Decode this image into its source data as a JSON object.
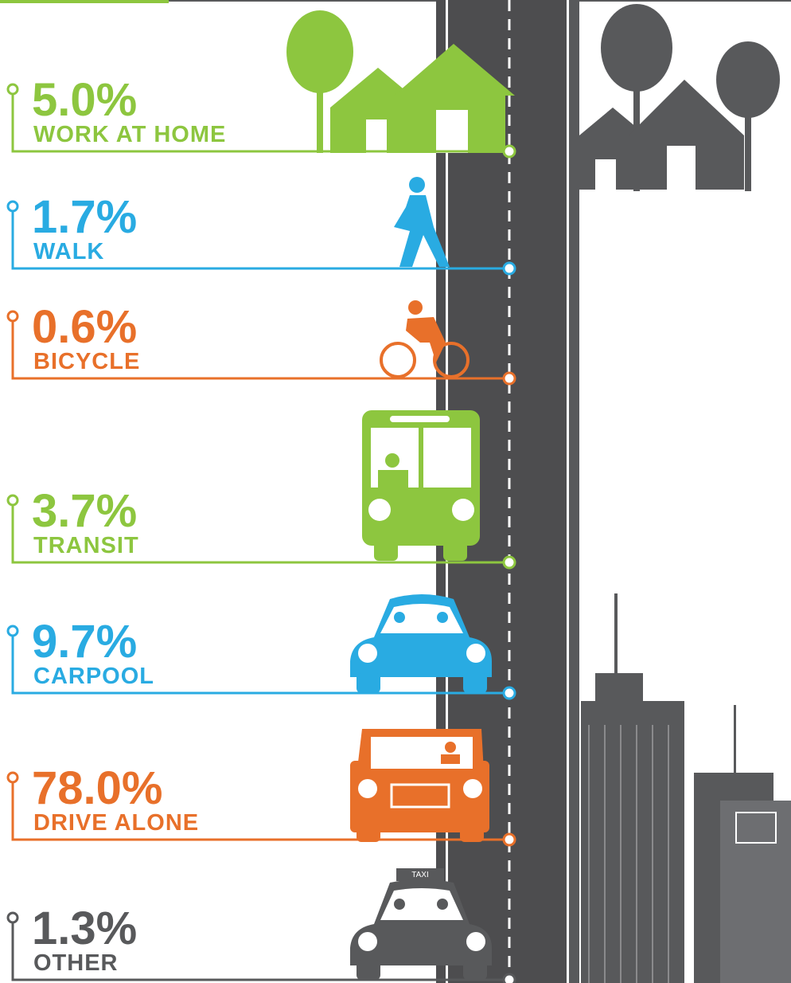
{
  "items": [
    {
      "value": "5.0%",
      "label": "WORK AT HOME",
      "color": "#8dc63f"
    },
    {
      "value": "1.7%",
      "label": "WALK",
      "color": "#29abe2"
    },
    {
      "value": "0.6%",
      "label": "BICYCLE",
      "color": "#e8702a"
    },
    {
      "value": "3.7%",
      "label": "TRANSIT",
      "color": "#8dc63f"
    },
    {
      "value": "9.7%",
      "label": "CARPOOL",
      "color": "#29abe2"
    },
    {
      "value": "78.0%",
      "label": "DRIVE ALONE",
      "color": "#e8702a"
    },
    {
      "value": "1.3%",
      "label": "OTHER",
      "color": "#58595b"
    }
  ],
  "taxi_sign": "TAXI"
}
